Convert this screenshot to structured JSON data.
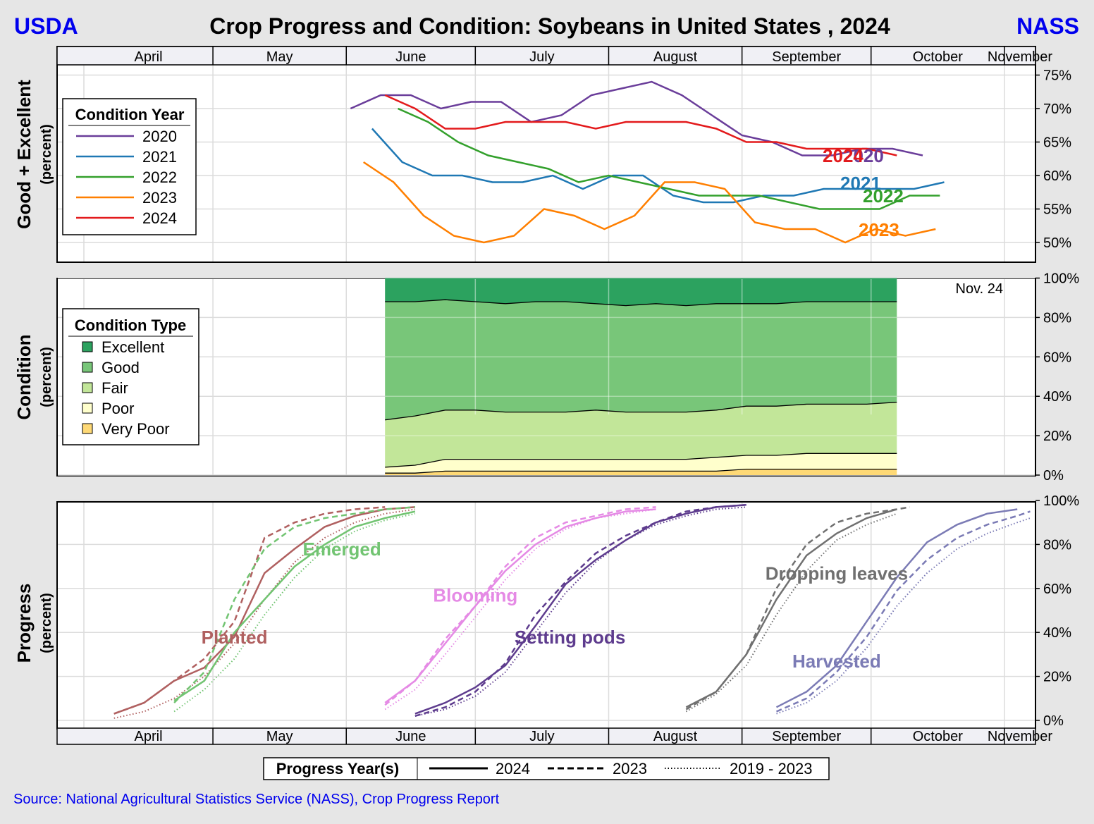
{
  "header": {
    "left_logo": "USDA",
    "title": "Crop Progress and Condition: Soybeans in United States , 2024",
    "right_logo": "NASS"
  },
  "months": [
    "April",
    "May",
    "June",
    "July",
    "August",
    "September",
    "October",
    "November"
  ],
  "footer": {
    "source": "Source: National Agricultural Statistics Service (NASS), Crop Progress Report",
    "progress_legend": {
      "title": "Progress Year(s)",
      "items": [
        {
          "label": "2024",
          "style": "solid"
        },
        {
          "label": "2023",
          "style": "dashed"
        },
        {
          "label": "2019 - 2023",
          "style": "dotted"
        }
      ]
    }
  },
  "colors": {
    "usda_blue": "#0000ee",
    "2020": "#6a3d9a",
    "2021": "#1f78b4",
    "2022": "#33a02c",
    "2023": "#ff7f00",
    "2024": "#e31a1c",
    "excellent": "#2ca25f",
    "good": "#78c679",
    "fair": "#c2e699",
    "poor": "#ffffcc",
    "very_poor": "#fed976",
    "planted": "#b06060",
    "emerged": "#72c472",
    "blooming": "#e58ae5",
    "setting_pods": "#5e3c8e",
    "dropping": "#707070",
    "harvested": "#7b7bb5"
  },
  "chart_data": [
    {
      "type": "line",
      "title": "Good + Excellent",
      "ylabel": "Good + Excellent",
      "ylabel_unit": "(percent)",
      "x_unit": "day of year",
      "ylim": [
        47,
        76
      ],
      "yticks": [
        50,
        55,
        60,
        65,
        70,
        75
      ],
      "ytick_labels": [
        "50%",
        "55%",
        "60%",
        "65%",
        "70%",
        "75%"
      ],
      "legend_title": "Condition Year",
      "series": [
        {
          "name": "2020",
          "color": "#6a3d9a",
          "end_label": "2020",
          "x": [
            153,
            160,
            167,
            174,
            181,
            188,
            195,
            202,
            209,
            216,
            223,
            230,
            237,
            244,
            251,
            258,
            265,
            272,
            279,
            286
          ],
          "y": [
            70,
            72,
            72,
            70,
            71,
            71,
            68,
            69,
            72,
            73,
            74,
            72,
            69,
            66,
            65,
            63,
            63,
            64,
            64,
            63
          ]
        },
        {
          "name": "2021",
          "color": "#1f78b4",
          "end_label": "2021",
          "x": [
            158,
            165,
            172,
            179,
            186,
            193,
            200,
            207,
            214,
            221,
            228,
            235,
            242,
            249,
            256,
            263,
            270,
            277,
            284,
            291
          ],
          "y": [
            67,
            62,
            60,
            60,
            59,
            59,
            60,
            58,
            60,
            60,
            57,
            56,
            56,
            57,
            57,
            58,
            58,
            58,
            58,
            59
          ]
        },
        {
          "name": "2022",
          "color": "#33a02c",
          "end_label": "2022",
          "x": [
            164,
            171,
            178,
            185,
            192,
            199,
            206,
            213,
            220,
            227,
            234,
            241,
            248,
            255,
            262,
            269,
            276,
            283,
            290
          ],
          "y": [
            70,
            68,
            65,
            63,
            62,
            61,
            59,
            60,
            59,
            58,
            57,
            57,
            57,
            56,
            55,
            55,
            55,
            57,
            57
          ]
        },
        {
          "name": "2023",
          "color": "#ff7f00",
          "end_label": "2023",
          "x": [
            156,
            163,
            170,
            177,
            184,
            191,
            198,
            205,
            212,
            219,
            226,
            233,
            240,
            247,
            254,
            261,
            268,
            275,
            282,
            289
          ],
          "y": [
            62,
            59,
            54,
            51,
            50,
            51,
            55,
            54,
            52,
            54,
            59,
            59,
            58,
            53,
            52,
            52,
            50,
            52,
            51,
            52
          ]
        },
        {
          "name": "2024",
          "color": "#e31a1c",
          "end_label": "2024",
          "x": [
            161,
            168,
            175,
            182,
            189,
            196,
            203,
            210,
            217,
            224,
            231,
            238,
            245,
            252,
            259,
            266,
            273,
            280
          ],
          "y": [
            72,
            70,
            67,
            67,
            68,
            68,
            68,
            67,
            68,
            68,
            68,
            67,
            65,
            65,
            64,
            64,
            64,
            63
          ]
        }
      ]
    },
    {
      "type": "area",
      "title": "Condition",
      "ylabel": "Condition",
      "ylabel_unit": "(percent)",
      "ylim": [
        0,
        100
      ],
      "yticks": [
        0,
        20,
        40,
        60,
        80,
        100
      ],
      "ytick_labels": [
        "0%",
        "20%",
        "40%",
        "60%",
        "80%",
        "100%"
      ],
      "legend_title": "Condition Type",
      "annotation": "Nov. 24",
      "annotation_x": 329,
      "x": [
        161,
        168,
        175,
        182,
        189,
        196,
        203,
        210,
        217,
        224,
        231,
        238,
        245,
        252,
        259,
        266,
        273,
        280
      ],
      "categories": [
        "Excellent",
        "Good",
        "Fair",
        "Poor",
        "Very Poor"
      ],
      "cumulative_boundaries": {
        "very_poor_top": [
          1,
          1,
          2,
          2,
          2,
          2,
          2,
          2,
          2,
          2,
          2,
          2,
          3,
          3,
          3,
          3,
          3,
          3
        ],
        "poor_top": [
          4,
          5,
          8,
          8,
          8,
          8,
          8,
          8,
          8,
          8,
          8,
          9,
          10,
          10,
          11,
          11,
          11,
          11
        ],
        "fair_top": [
          28,
          30,
          33,
          33,
          32,
          32,
          32,
          33,
          32,
          32,
          32,
          33,
          35,
          35,
          36,
          36,
          36,
          37
        ],
        "good_top": [
          88,
          88,
          89,
          88,
          87,
          88,
          88,
          87,
          86,
          87,
          86,
          87,
          87,
          87,
          88,
          88,
          88,
          88
        ]
      }
    },
    {
      "type": "line",
      "title": "Progress",
      "ylabel": "Progress",
      "ylabel_unit": "(percent)",
      "ylim": [
        -3,
        101
      ],
      "yticks": [
        0,
        20,
        40,
        60,
        80,
        100
      ],
      "ytick_labels": [
        "0%",
        "20%",
        "40%",
        "60%",
        "80%",
        "100%"
      ],
      "stages": [
        {
          "name": "Planted",
          "color": "#b06060",
          "label_x": 126,
          "label_y": 35,
          "series": {
            "2024": {
              "x": [
                98,
                105,
                112,
                119,
                126,
                133,
                140,
                147,
                154,
                161,
                168
              ],
              "y": [
                3,
                8,
                18,
                24,
                38,
                67,
                78,
                88,
                93,
                96,
                97
              ]
            },
            "2023": {
              "x": [
                98,
                105,
                112,
                119,
                126,
                133,
                140,
                147,
                154,
                161
              ],
              "y": [
                3,
                8,
                18,
                28,
                45,
                83,
                90,
                94,
                96,
                97
              ]
            },
            "avg": {
              "x": [
                98,
                105,
                112,
                119,
                126,
                133,
                140,
                147,
                154,
                161,
                168
              ],
              "y": [
                1,
                4,
                10,
                20,
                35,
                55,
                72,
                83,
                90,
                94,
                96
              ]
            }
          }
        },
        {
          "name": "Emerged",
          "color": "#72c472",
          "label_x": 151,
          "label_y": 75,
          "series": {
            "2024": {
              "x": [
                112,
                119,
                126,
                133,
                140,
                147,
                154,
                161,
                168
              ],
              "y": [
                9,
                18,
                40,
                55,
                70,
                80,
                88,
                92,
                95
              ]
            },
            "2023": {
              "x": [
                112,
                119,
                126,
                133,
                140,
                147,
                154,
                161,
                168
              ],
              "y": [
                8,
                22,
                55,
                78,
                88,
                92,
                94,
                96,
                97
              ]
            },
            "avg": {
              "x": [
                112,
                119,
                126,
                133,
                140,
                147,
                154,
                161,
                168
              ],
              "y": [
                4,
                14,
                28,
                48,
                65,
                78,
                86,
                91,
                94
              ]
            }
          }
        },
        {
          "name": "Blooming",
          "color": "#e58ae5",
          "label_x": 182,
          "label_y": 54,
          "series": {
            "2024": {
              "x": [
                161,
                168,
                175,
                182,
                189,
                196,
                203,
                210,
                217,
                224
              ],
              "y": [
                8,
                18,
                35,
                52,
                68,
                80,
                88,
                92,
                95,
                96
              ]
            },
            "2023": {
              "x": [
                161,
                168,
                175,
                182,
                189,
                196,
                203,
                210,
                217,
                224
              ],
              "y": [
                7,
                18,
                37,
                52,
                70,
                83,
                90,
                93,
                96,
                97
              ]
            },
            "avg": {
              "x": [
                161,
                168,
                175,
                182,
                189,
                196,
                203,
                210,
                217,
                224
              ],
              "y": [
                5,
                14,
                30,
                47,
                64,
                78,
                87,
                92,
                94,
                96
              ]
            }
          }
        },
        {
          "name": "Setting pods",
          "color": "#5e3c8e",
          "label_x": 204,
          "label_y": 35,
          "series": {
            "2024": {
              "x": [
                168,
                175,
                182,
                189,
                196,
                203,
                210,
                217,
                224,
                231,
                238,
                245
              ],
              "y": [
                3,
                8,
                15,
                25,
                43,
                62,
                73,
                82,
                90,
                94,
                97,
                98
              ]
            },
            "2023": {
              "x": [
                168,
                175,
                182,
                189,
                196,
                203,
                210,
                217,
                224,
                231,
                238,
                245
              ],
              "y": [
                2,
                6,
                13,
                26,
                48,
                63,
                76,
                84,
                90,
                95,
                97,
                98
              ]
            },
            "avg": {
              "x": [
                168,
                175,
                182,
                189,
                196,
                203,
                210,
                217,
                224,
                231,
                238,
                245
              ],
              "y": [
                2,
                5,
                11,
                22,
                40,
                58,
                72,
                82,
                89,
                93,
                96,
                97
              ]
            }
          }
        },
        {
          "name": "Dropping leaves",
          "color": "#707070",
          "label_x": 266,
          "label_y": 64,
          "series": {
            "2024": {
              "x": [
                231,
                238,
                245,
                252,
                259,
                266,
                273,
                280
              ],
              "y": [
                6,
                13,
                30,
                55,
                75,
                85,
                92,
                96
              ]
            },
            "2023": {
              "x": [
                231,
                238,
                245,
                252,
                259,
                266,
                273,
                280,
                283
              ],
              "y": [
                5,
                13,
                30,
                60,
                80,
                90,
                94,
                96,
                97
              ]
            },
            "avg": {
              "x": [
                231,
                238,
                245,
                252,
                259,
                266,
                273,
                280
              ],
              "y": [
                4,
                12,
                25,
                48,
                68,
                82,
                89,
                94
              ]
            }
          }
        },
        {
          "name": "Harvested",
          "color": "#7b7bb5",
          "label_x": 266,
          "label_y": 24,
          "series": {
            "2024": {
              "x": [
                252,
                259,
                266,
                273,
                280,
                287,
                294,
                301,
                308
              ],
              "y": [
                6,
                13,
                25,
                45,
                65,
                81,
                89,
                94,
                96
              ]
            },
            "2023": {
              "x": [
                252,
                259,
                266,
                273,
                280,
                287,
                294,
                301,
                308,
                311
              ],
              "y": [
                4,
                10,
                22,
                38,
                59,
                73,
                83,
                89,
                93,
                95
              ]
            },
            "avg": {
              "x": [
                252,
                259,
                266,
                273,
                280,
                287,
                294,
                301,
                308,
                311
              ],
              "y": [
                3,
                8,
                18,
                33,
                52,
                67,
                78,
                85,
                90,
                92
              ]
            }
          }
        }
      ]
    }
  ]
}
